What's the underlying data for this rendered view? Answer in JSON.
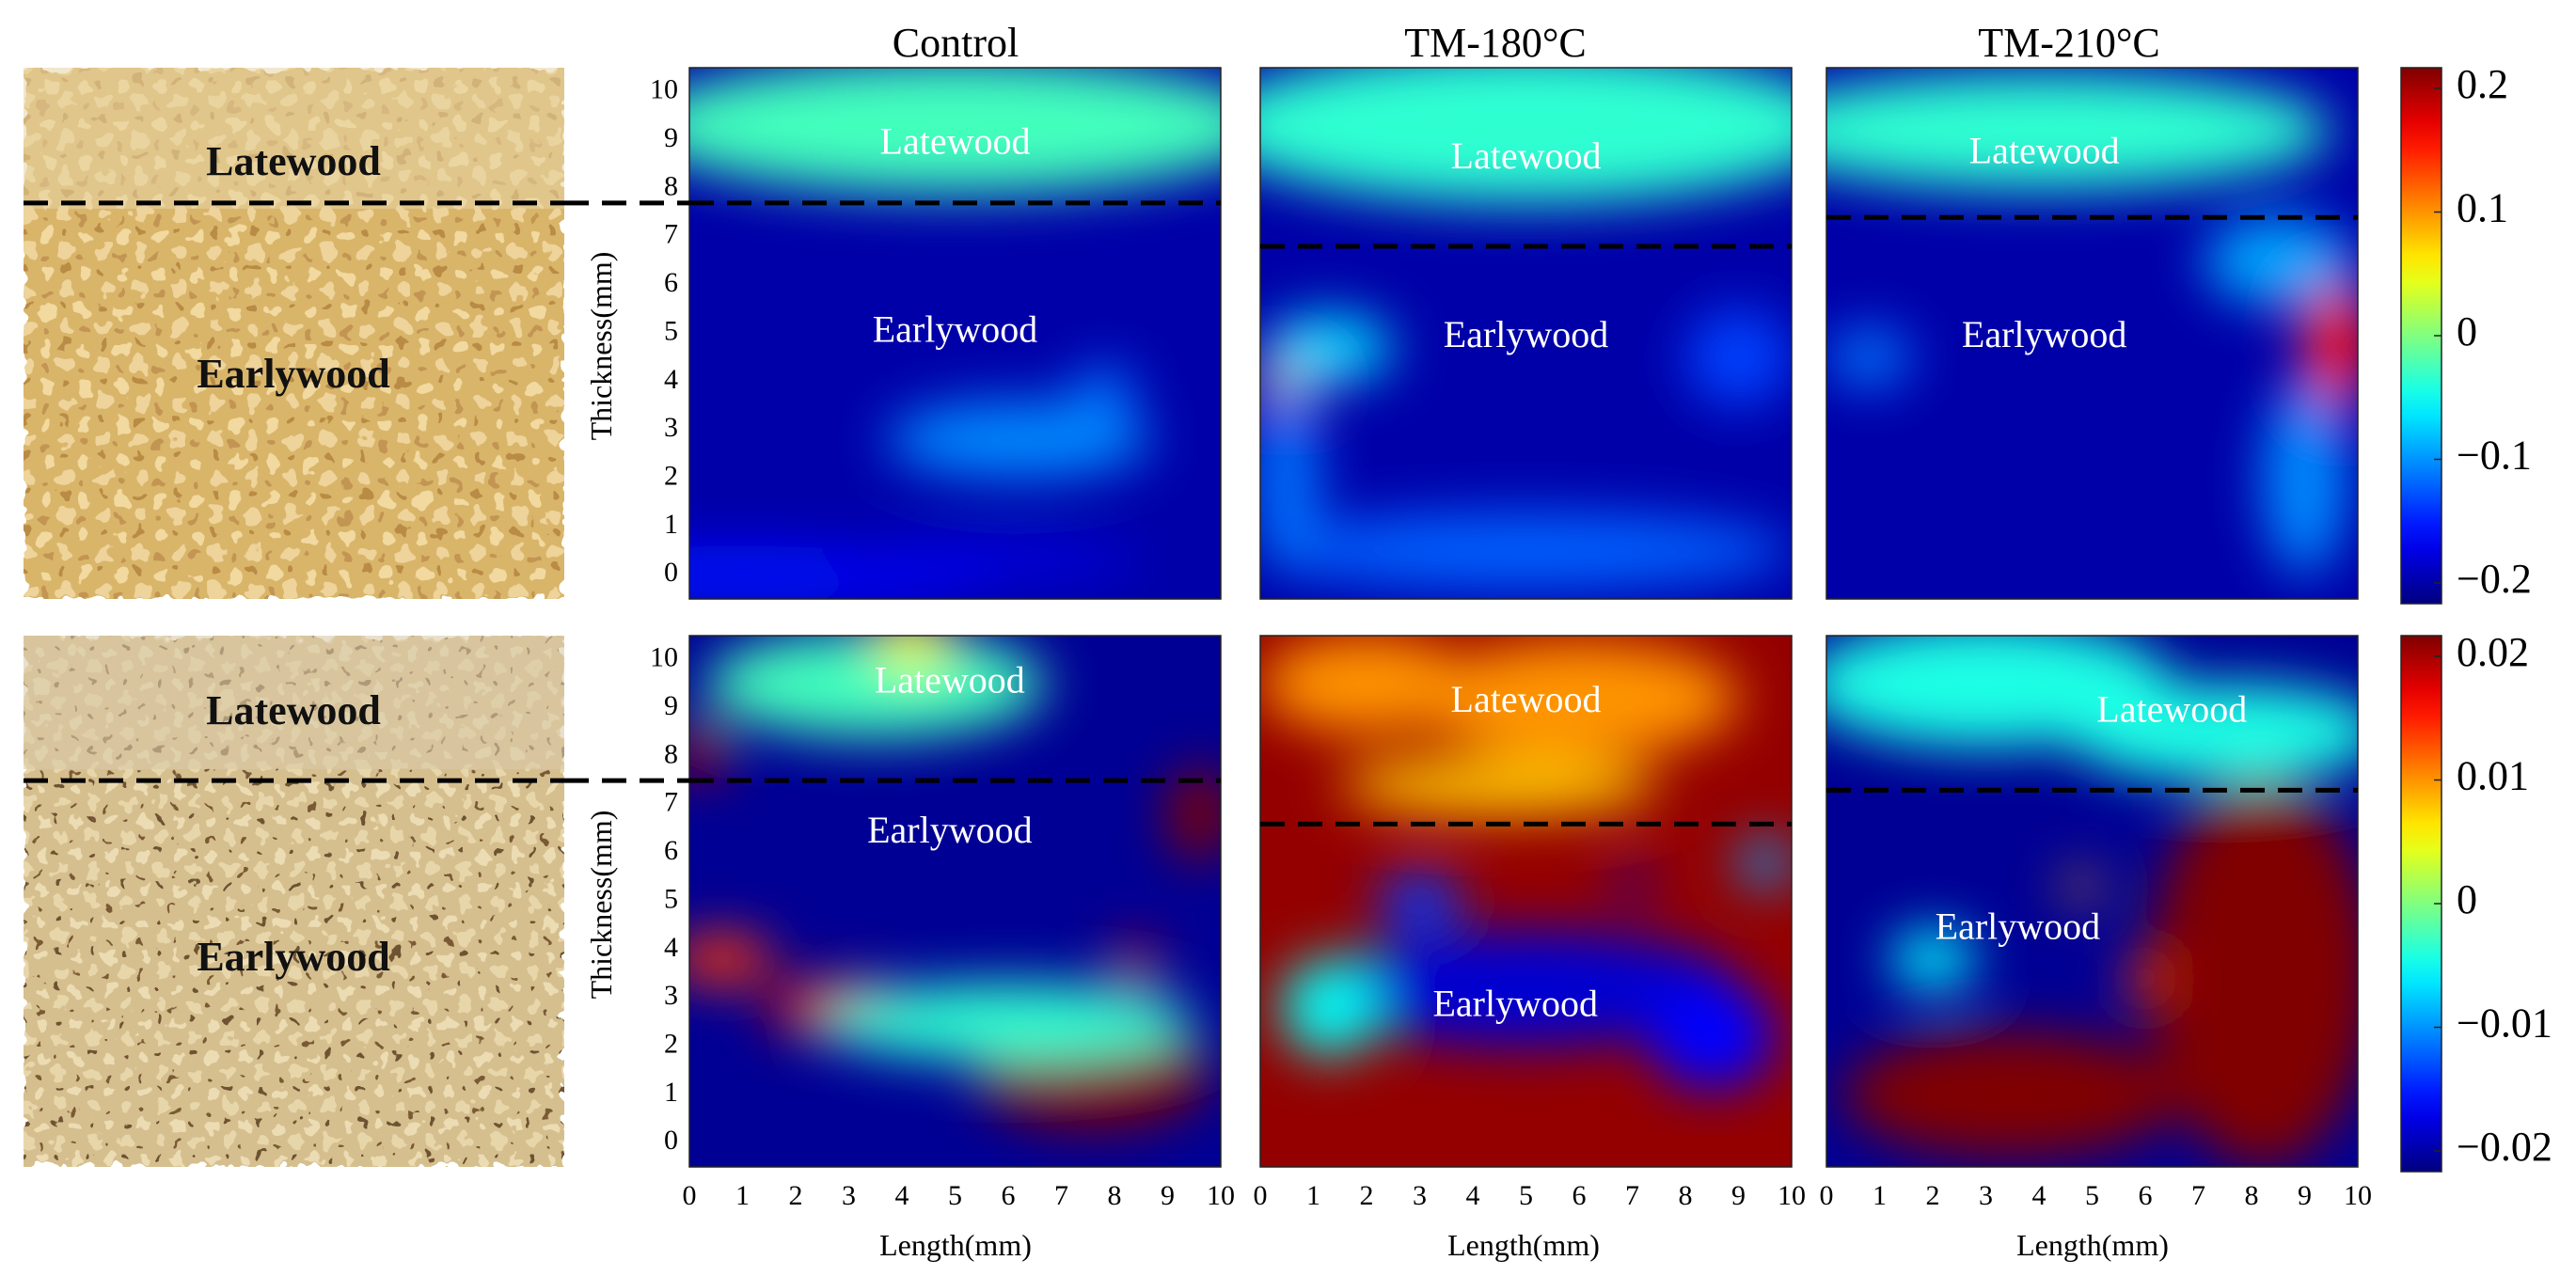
{
  "chart_data": {
    "type": "heatmap",
    "column_titles": [
      "Control",
      "TM-180°C",
      "TM-210°C"
    ],
    "xlabel": "Length(mm)",
    "ylabel": "Thickness(mm)",
    "x_ticks": [
      "0",
      "1",
      "2",
      "3",
      "4",
      "5",
      "6",
      "7",
      "8",
      "9",
      "10"
    ],
    "y_ticks": [
      "0",
      "1",
      "2",
      "3",
      "4",
      "5",
      "6",
      "7",
      "8",
      "9",
      "10"
    ],
    "xlim": [
      0,
      10
    ],
    "ylim": [
      -0.5,
      10.5
    ],
    "colormap": "jet",
    "photo_labels": {
      "latewood": "Latewood",
      "earlywood": "Earlywood"
    },
    "rows": [
      {
        "colorbar": {
          "min": -0.2,
          "max": 0.2,
          "ticks": [
            "0.2",
            "0.1",
            "0",
            "−0.1",
            "−0.2"
          ]
        },
        "photo": {
          "boundary_y": 7.7
        },
        "panels": [
          {
            "title": "Control",
            "boundary_y": 7.7,
            "labels": [
              {
                "text": "Latewood",
                "x": 5.0,
                "y": 8.9
              },
              {
                "text": "Earlywood",
                "x": 5.0,
                "y": 5.0
              }
            ]
          },
          {
            "title": "TM-180°C",
            "boundary_y": 6.8,
            "labels": [
              {
                "text": "Latewood",
                "x": 5.0,
                "y": 8.6
              },
              {
                "text": "Earlywood",
                "x": 5.0,
                "y": 4.9
              }
            ]
          },
          {
            "title": "TM-210°C",
            "boundary_y": 7.4,
            "labels": [
              {
                "text": "Latewood",
                "x": 4.1,
                "y": 8.7
              },
              {
                "text": "Earlywood",
                "x": 4.1,
                "y": 4.9
              }
            ]
          }
        ]
      },
      {
        "colorbar": {
          "min": -0.02,
          "max": 0.02,
          "ticks": [
            "0.02",
            "0.01",
            "0",
            "−0.01",
            "−0.02"
          ]
        },
        "photo": {
          "boundary_y": 7.5
        },
        "panels": [
          {
            "title": "Control",
            "boundary_y": 7.5,
            "labels": [
              {
                "text": "Latewood",
                "x": 4.9,
                "y": 9.5
              },
              {
                "text": "Earlywood",
                "x": 4.9,
                "y": 6.4
              }
            ]
          },
          {
            "title": "TM-180°C",
            "boundary_y": 6.6,
            "labels": [
              {
                "text": "Latewood",
                "x": 5.0,
                "y": 9.1
              },
              {
                "text": "Earlywood",
                "x": 4.8,
                "y": 2.8
              }
            ]
          },
          {
            "title": "TM-210°C",
            "boundary_y": 7.3,
            "labels": [
              {
                "text": "Latewood",
                "x": 6.5,
                "y": 8.9
              },
              {
                "text": "Earlywood",
                "x": 3.6,
                "y": 4.4
              }
            ]
          }
        ]
      }
    ]
  }
}
